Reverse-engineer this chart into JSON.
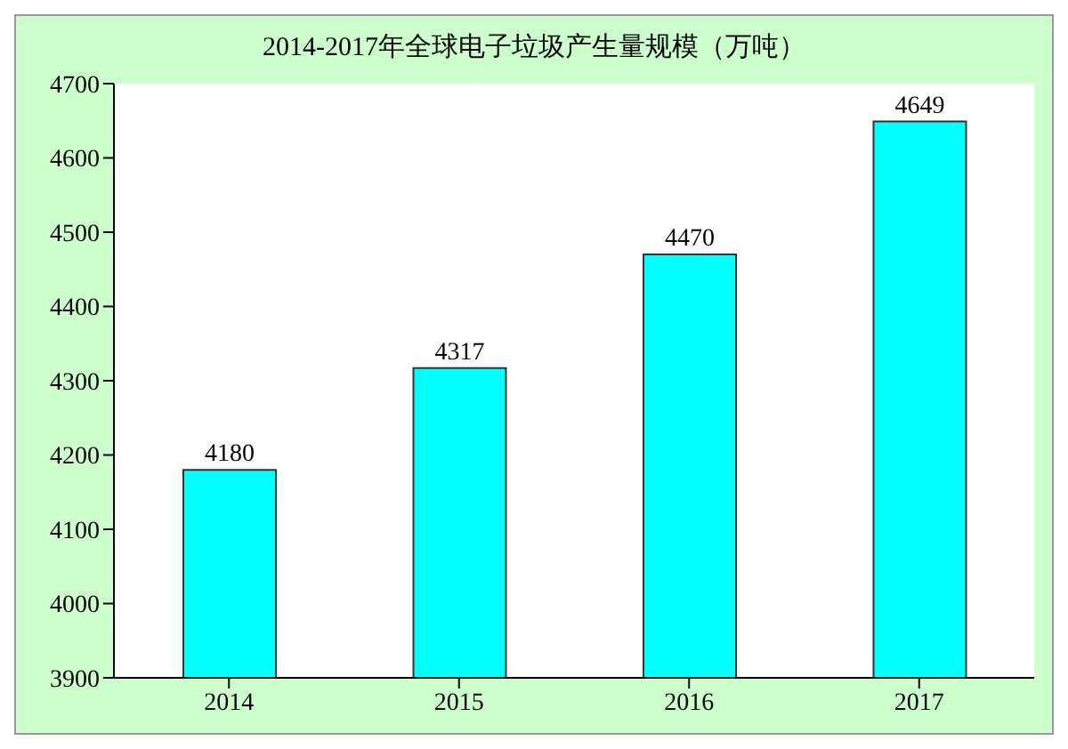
{
  "chart_data": {
    "type": "bar",
    "title": "2014-2017年全球电子垃圾产生量规模（万吨）",
    "categories": [
      "2014",
      "2015",
      "2016",
      "2017"
    ],
    "values": [
      4180,
      4317,
      4470,
      4649
    ],
    "color": "#00ffff",
    "ylim": [
      3900,
      4700
    ],
    "yticks": [
      3900,
      4000,
      4100,
      4200,
      4300,
      4400,
      4500,
      4600,
      4700
    ],
    "data_labels": true
  }
}
